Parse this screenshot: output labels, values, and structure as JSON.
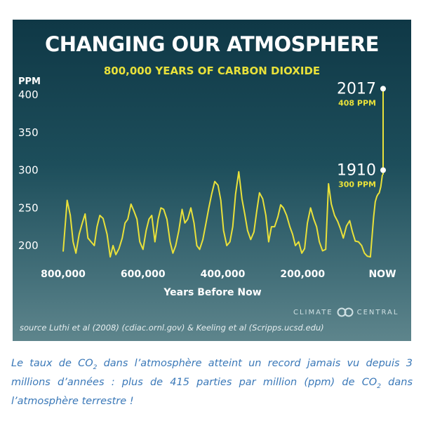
{
  "chart_data": {
    "type": "line",
    "title": "CHANGING OUR ATMOSPHERE",
    "subtitle": "800,000 YEARS OF CARBON DIOXIDE",
    "ylabel": "PPM",
    "xlabel": "Years Before Now",
    "ylim": [
      180,
      420
    ],
    "yticks": [
      "200",
      "250",
      "300",
      "350",
      "400"
    ],
    "ytick_values": [
      200,
      250,
      300,
      350,
      400
    ],
    "xticks": [
      "800,000",
      "600,000",
      "400,000",
      "200,000",
      "NOW"
    ],
    "xtick_values": [
      800000,
      600000,
      400000,
      200000,
      0
    ],
    "series": [
      {
        "values_desc": "CO2 ppm vs years before now",
        "x": [
          800000,
          790000,
          782000,
          775000,
          768000,
          760000,
          752000,
          745000,
          738000,
          730000,
          722000,
          715000,
          708000,
          700000,
          690000,
          682000,
          675000,
          668000,
          660000,
          652000,
          645000,
          638000,
          630000,
          622000,
          615000,
          608000,
          600000,
          592000,
          585000,
          578000,
          570000,
          562000,
          555000,
          548000,
          540000,
          532000,
          525000,
          518000,
          510000,
          502000,
          495000,
          488000,
          480000,
          472000,
          465000,
          458000,
          450000,
          442000,
          435000,
          428000,
          420000,
          412000,
          405000,
          398000,
          390000,
          382000,
          375000,
          368000,
          360000,
          352000,
          345000,
          338000,
          330000,
          322000,
          315000,
          308000,
          300000,
          292000,
          285000,
          278000,
          270000,
          262000,
          255000,
          248000,
          240000,
          232000,
          225000,
          218000,
          210000,
          202000,
          195000,
          188000,
          180000,
          172000,
          165000,
          158000,
          150000,
          142000,
          135000,
          128000,
          120000,
          112000,
          105000,
          98000,
          90000,
          82000,
          75000,
          68000,
          60000,
          52000,
          45000,
          38000,
          30000,
          22000,
          18000,
          14000,
          11000,
          8000,
          4000,
          0
        ],
        "y": [
          192,
          260,
          240,
          205,
          190,
          215,
          230,
          242,
          210,
          205,
          200,
          225,
          240,
          236,
          215,
          185,
          200,
          188,
          196,
          210,
          230,
          235,
          255,
          245,
          235,
          205,
          195,
          220,
          235,
          240,
          205,
          235,
          250,
          248,
          235,
          205,
          190,
          200,
          220,
          248,
          230,
          235,
          250,
          230,
          200,
          195,
          208,
          230,
          250,
          268,
          285,
          280,
          260,
          220,
          200,
          205,
          225,
          268,
          298,
          262,
          242,
          220,
          208,
          218,
          245,
          270,
          262,
          240,
          205,
          225,
          225,
          238,
          254,
          250,
          240,
          225,
          215,
          200,
          205,
          190,
          196,
          230,
          250,
          235,
          225,
          205,
          193,
          195,
          282,
          255,
          240,
          232,
          222,
          210,
          226,
          233,
          218,
          206,
          205,
          200,
          190,
          186,
          185,
          238,
          258,
          265,
          268,
          270,
          278,
          294
        ]
      }
    ],
    "annotations": [
      {
        "year": "2017",
        "value": "408 PPM",
        "ppm": 408
      },
      {
        "year": "1910",
        "value": "300 PPM",
        "ppm": 300
      }
    ],
    "grid": false,
    "colors": {
      "line": "#e9e13a",
      "marker": "#ffffff",
      "text": "#ffffff"
    }
  },
  "source": "source Luthi et al (2008) (cdiac.ornl.gov) & Keeling et al (Scripps.ucsd.edu)",
  "brand": {
    "left": "CLIMATE",
    "right": "CENTRAL",
    "icon": "climate-central-logo"
  },
  "caption": {
    "p1": "Le taux de CO",
    "sub1": "2",
    "p2": " dans l’atmosphère atteint un record jamais vu depuis 3 millions d’années : plus de 415 parties par million (ppm) de CO",
    "sub2": "2",
    "p3": " dans l’atmosphère terrestre !"
  }
}
